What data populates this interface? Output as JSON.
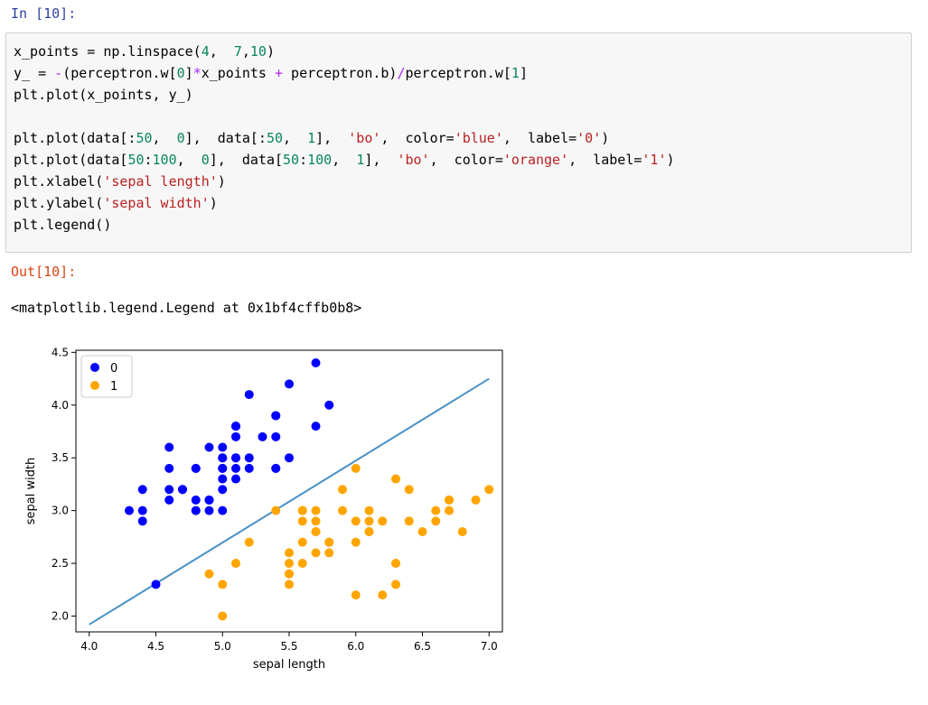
{
  "cell_in_prompt": "In [10]:",
  "cell_out_prompt": "Out[10]:",
  "code_lines": [
    [
      [
        "x_points = np.linspace(",
        ""
      ],
      [
        "4",
        "num"
      ],
      [
        ",  ",
        ""
      ],
      [
        "7",
        "num"
      ],
      [
        ",",
        ""
      ],
      [
        "10",
        "num"
      ],
      [
        ")",
        ""
      ]
    ],
    [
      [
        "y_ = ",
        ""
      ],
      [
        "-",
        "op"
      ],
      [
        "(perceptron.w[",
        ""
      ],
      [
        "0",
        "num"
      ],
      [
        "]",
        ""
      ],
      [
        "*",
        "op"
      ],
      [
        "x_points ",
        ""
      ],
      [
        "+",
        "op"
      ],
      [
        " perceptron.b)",
        ""
      ],
      [
        "/",
        "op"
      ],
      [
        "perceptron.w[",
        ""
      ],
      [
        "1",
        "num"
      ],
      [
        "]",
        ""
      ]
    ],
    [
      [
        "plt.plot(x_points, y_)",
        ""
      ]
    ],
    [
      [
        "",
        ""
      ]
    ],
    [
      [
        "plt.plot(data[:",
        ""
      ],
      [
        "50",
        "num"
      ],
      [
        ",  ",
        ""
      ],
      [
        "0",
        "num"
      ],
      [
        "],  data[:",
        ""
      ],
      [
        "50",
        "num"
      ],
      [
        ",  ",
        ""
      ],
      [
        "1",
        "num"
      ],
      [
        "],  ",
        ""
      ],
      [
        "'bo'",
        "str"
      ],
      [
        ",  color=",
        ""
      ],
      [
        "'blue'",
        "str"
      ],
      [
        ",  label=",
        ""
      ],
      [
        "'0'",
        "str"
      ],
      [
        ")",
        ""
      ]
    ],
    [
      [
        "plt.plot(data[",
        ""
      ],
      [
        "50",
        "num"
      ],
      [
        ":",
        ""
      ],
      [
        "100",
        "num"
      ],
      [
        ",  ",
        ""
      ],
      [
        "0",
        "num"
      ],
      [
        "],  data[",
        ""
      ],
      [
        "50",
        "num"
      ],
      [
        ":",
        ""
      ],
      [
        "100",
        "num"
      ],
      [
        ",  ",
        ""
      ],
      [
        "1",
        "num"
      ],
      [
        "],  ",
        ""
      ],
      [
        "'bo'",
        "str"
      ],
      [
        ",  color=",
        ""
      ],
      [
        "'orange'",
        "str"
      ],
      [
        ",  label=",
        ""
      ],
      [
        "'1'",
        "str"
      ],
      [
        ")",
        ""
      ]
    ],
    [
      [
        "plt.xlabel(",
        ""
      ],
      [
        "'sepal length'",
        "str"
      ],
      [
        ")",
        ""
      ]
    ],
    [
      [
        "plt.ylabel(",
        ""
      ],
      [
        "'sepal width'",
        "str"
      ],
      [
        ")",
        ""
      ]
    ],
    [
      [
        "plt.legend()",
        ""
      ]
    ]
  ],
  "output_text": "<matplotlib.legend.Legend at 0x1bf4cffb0b8>",
  "colors": {
    "series0": "#0000ff",
    "series1": "#ffa500",
    "line": "#4a90c4"
  },
  "chart_data": {
    "type": "scatter",
    "xlabel": "sepal length",
    "ylabel": "sepal width",
    "xlim": [
      3.9,
      7.1
    ],
    "ylim": [
      1.85,
      4.52
    ],
    "xticks": [
      4.0,
      4.5,
      5.0,
      5.5,
      6.0,
      6.5,
      7.0
    ],
    "xtick_labels": [
      "4.0",
      "4.5",
      "5.0",
      "5.5",
      "6.0",
      "6.5",
      "7.0"
    ],
    "yticks": [
      2.0,
      2.5,
      3.0,
      3.5,
      4.0,
      4.5
    ],
    "ytick_labels": [
      "2.0",
      "2.5",
      "3.0",
      "3.5",
      "4.0",
      "4.5"
    ],
    "legend_position": "top-left",
    "series": [
      {
        "name": "0",
        "points": [
          [
            5.1,
            3.5
          ],
          [
            4.9,
            3.0
          ],
          [
            4.7,
            3.2
          ],
          [
            4.6,
            3.1
          ],
          [
            5.0,
            3.6
          ],
          [
            5.4,
            3.9
          ],
          [
            4.6,
            3.4
          ],
          [
            5.0,
            3.4
          ],
          [
            4.4,
            2.9
          ],
          [
            4.9,
            3.1
          ],
          [
            5.4,
            3.7
          ],
          [
            4.8,
            3.4
          ],
          [
            4.8,
            3.0
          ],
          [
            4.3,
            3.0
          ],
          [
            5.8,
            4.0
          ],
          [
            5.7,
            4.4
          ],
          [
            5.4,
            3.9
          ],
          [
            5.1,
            3.5
          ],
          [
            5.7,
            3.8
          ],
          [
            5.1,
            3.8
          ],
          [
            5.4,
            3.4
          ],
          [
            5.1,
            3.7
          ],
          [
            4.6,
            3.6
          ],
          [
            5.1,
            3.3
          ],
          [
            4.8,
            3.4
          ],
          [
            5.0,
            3.0
          ],
          [
            5.0,
            3.4
          ],
          [
            5.2,
            3.5
          ],
          [
            5.2,
            3.4
          ],
          [
            4.7,
            3.2
          ],
          [
            4.8,
            3.1
          ],
          [
            5.4,
            3.4
          ],
          [
            5.2,
            4.1
          ],
          [
            5.5,
            4.2
          ],
          [
            4.9,
            3.1
          ],
          [
            5.0,
            3.2
          ],
          [
            5.5,
            3.5
          ],
          [
            4.9,
            3.6
          ],
          [
            4.4,
            3.0
          ],
          [
            5.1,
            3.4
          ],
          [
            5.0,
            3.5
          ],
          [
            4.5,
            2.3
          ],
          [
            4.4,
            3.2
          ],
          [
            5.0,
            3.5
          ],
          [
            5.1,
            3.8
          ],
          [
            4.8,
            3.0
          ],
          [
            5.1,
            3.8
          ],
          [
            4.6,
            3.2
          ],
          [
            5.3,
            3.7
          ],
          [
            5.0,
            3.3
          ]
        ]
      },
      {
        "name": "1",
        "points": [
          [
            7.0,
            3.2
          ],
          [
            6.4,
            3.2
          ],
          [
            6.9,
            3.1
          ],
          [
            5.5,
            2.3
          ],
          [
            6.5,
            2.8
          ],
          [
            5.7,
            2.8
          ],
          [
            6.3,
            3.3
          ],
          [
            4.9,
            2.4
          ],
          [
            6.6,
            2.9
          ],
          [
            5.2,
            2.7
          ],
          [
            5.0,
            2.0
          ],
          [
            5.9,
            3.0
          ],
          [
            6.0,
            2.2
          ],
          [
            6.1,
            2.9
          ],
          [
            5.6,
            2.9
          ],
          [
            6.7,
            3.1
          ],
          [
            5.6,
            3.0
          ],
          [
            5.8,
            2.7
          ],
          [
            6.2,
            2.2
          ],
          [
            5.6,
            2.5
          ],
          [
            5.9,
            3.2
          ],
          [
            6.1,
            2.8
          ],
          [
            6.3,
            2.5
          ],
          [
            6.1,
            2.8
          ],
          [
            6.4,
            2.9
          ],
          [
            6.6,
            3.0
          ],
          [
            6.8,
            2.8
          ],
          [
            6.7,
            3.0
          ],
          [
            6.0,
            2.9
          ],
          [
            5.7,
            2.6
          ],
          [
            5.5,
            2.4
          ],
          [
            5.5,
            2.4
          ],
          [
            5.8,
            2.7
          ],
          [
            6.0,
            2.7
          ],
          [
            5.4,
            3.0
          ],
          [
            6.0,
            3.4
          ],
          [
            6.7,
            3.1
          ],
          [
            6.3,
            2.3
          ],
          [
            5.6,
            3.0
          ],
          [
            5.5,
            2.5
          ],
          [
            5.5,
            2.6
          ],
          [
            6.1,
            3.0
          ],
          [
            5.8,
            2.6
          ],
          [
            5.0,
            2.3
          ],
          [
            5.6,
            2.7
          ],
          [
            5.7,
            3.0
          ],
          [
            5.7,
            2.9
          ],
          [
            6.2,
            2.9
          ],
          [
            5.1,
            2.5
          ],
          [
            5.7,
            2.8
          ]
        ]
      }
    ],
    "line": {
      "x": [
        4.0,
        7.0
      ],
      "y": [
        1.92,
        4.25
      ]
    }
  }
}
